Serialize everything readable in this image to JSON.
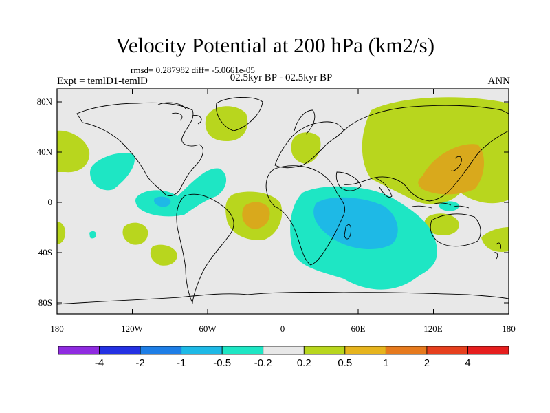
{
  "title": "Velocity Potential at 200 hPa (km2/s)",
  "stats": "rmsd= 0.287982 diff= -5.0661e-05",
  "experiment": "Expt = temlD1-temlD",
  "period": "02.5kyr BP - 02.5kyr BP",
  "season": "ANN",
  "axes": {
    "lat_ticks": [
      "80N",
      "40N",
      "0",
      "40S",
      "80S"
    ],
    "lon_ticks": [
      "180",
      "120W",
      "60W",
      "0",
      "60E",
      "120E",
      "180"
    ]
  },
  "colorbar": {
    "colors": [
      "#8f2be0",
      "#2431e3",
      "#1e7ee6",
      "#1eb9e6",
      "#1ee6c4",
      "#e8e8e8",
      "#b8d61e",
      "#e6b41e",
      "#e67a1e",
      "#e6401e",
      "#e61e1e"
    ],
    "labels": [
      "-4",
      "-2",
      "-1",
      "-0.5",
      "-0.2",
      "0.2",
      "0.5",
      "1",
      "2",
      "4"
    ]
  },
  "legend_colors": {
    "background": "#e8e8e8",
    "positive_low": "#b8d61e",
    "positive_mid": "#d9a91c",
    "negative_low": "#1ee6c4",
    "negative_mid": "#1eb9e6",
    "negative_strong": "#1e7ee6"
  }
}
